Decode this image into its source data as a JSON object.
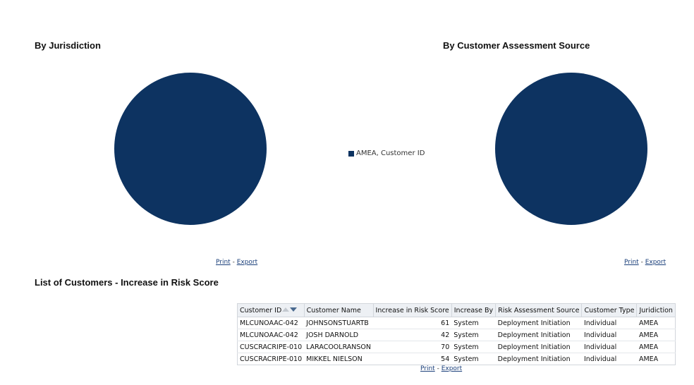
{
  "colors": {
    "pie_fill": "#0d3361",
    "link": "#1a3f7a",
    "header_bg": "#edf0f4"
  },
  "charts": {
    "jurisdiction_title": "By Jurisdiction",
    "source_title": "By Customer Assessment Source",
    "legend_label": "AMEA, Customer ID"
  },
  "chart_data": [
    {
      "type": "pie",
      "title": "By Jurisdiction",
      "categories": [
        "AMEA"
      ],
      "values": [
        1
      ],
      "legend": [
        "AMEA, Customer ID"
      ]
    },
    {
      "type": "pie",
      "title": "By Customer Assessment Source",
      "categories": [
        "Deployment Initiation"
      ],
      "values": [
        1
      ]
    }
  ],
  "links": {
    "print": "Print",
    "separator": " - ",
    "export": "Export"
  },
  "list": {
    "title": "List of Customers - Increase in Risk Score",
    "columns": [
      "Customer ID",
      "Customer Name",
      "Increase in Risk Score",
      "Increase By",
      "Risk Assessment Source",
      "Customer Type",
      "Juridiction"
    ],
    "rows": [
      [
        "MLCUNOAAC-042",
        "JOHNSONSTUARTB",
        "61",
        "System",
        "Deployment Initiation",
        "Individual",
        "AMEA"
      ],
      [
        "MLCUNOAAC-042",
        "JOSH DARNOLD",
        "42",
        "System",
        "Deployment Initiation",
        "Individual",
        "AMEA"
      ],
      [
        "CUSCRACRIPE-010",
        "LARACOOLRANSON",
        "70",
        "System",
        "Deployment Initiation",
        "Individual",
        "AMEA"
      ],
      [
        "CUSCRACRIPE-010",
        "MIKKEL NIELSON",
        "54",
        "System",
        "Deployment Initiation",
        "Individual",
        "AMEA"
      ]
    ]
  }
}
